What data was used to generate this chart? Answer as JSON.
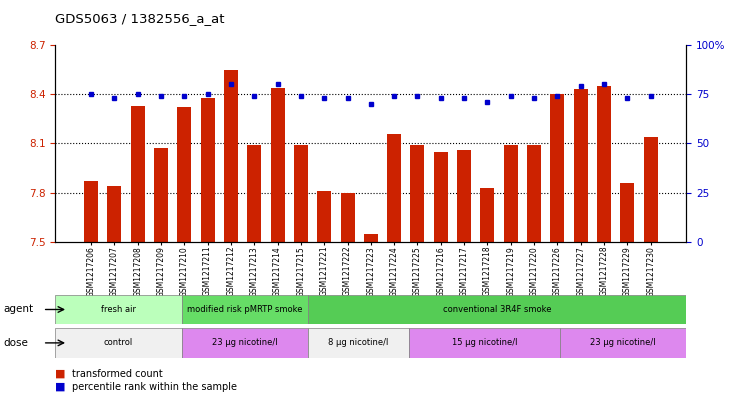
{
  "title": "GDS5063 / 1382556_a_at",
  "samples": [
    "GSM1217206",
    "GSM1217207",
    "GSM1217208",
    "GSM1217209",
    "GSM1217210",
    "GSM1217211",
    "GSM1217212",
    "GSM1217213",
    "GSM1217214",
    "GSM1217215",
    "GSM1217221",
    "GSM1217222",
    "GSM1217223",
    "GSM1217224",
    "GSM1217225",
    "GSM1217216",
    "GSM1217217",
    "GSM1217218",
    "GSM1217219",
    "GSM1217220",
    "GSM1217226",
    "GSM1217227",
    "GSM1217228",
    "GSM1217229",
    "GSM1217230"
  ],
  "bar_values": [
    7.87,
    7.84,
    8.33,
    8.07,
    8.32,
    8.38,
    8.55,
    8.09,
    8.44,
    8.09,
    7.81,
    7.8,
    7.55,
    8.16,
    8.09,
    8.05,
    8.06,
    7.83,
    8.09,
    8.09,
    8.4,
    8.43,
    8.45,
    7.86,
    8.14
  ],
  "percentile_values": [
    75,
    73,
    75,
    74,
    74,
    75,
    80,
    74,
    80,
    74,
    73,
    73,
    70,
    74,
    74,
    73,
    73,
    71,
    74,
    73,
    74,
    79,
    80,
    73,
    74
  ],
  "bar_color": "#cc2200",
  "percentile_color": "#0000cc",
  "ylim_left": [
    7.5,
    8.7
  ],
  "ylim_right": [
    0,
    100
  ],
  "yticks_left": [
    7.5,
    7.8,
    8.1,
    8.4,
    8.7
  ],
  "yticks_right": [
    0,
    25,
    50,
    75,
    100
  ],
  "grid_values": [
    7.8,
    8.1,
    8.4
  ],
  "agent_groups": [
    {
      "label": "fresh air",
      "start": 0,
      "end": 5,
      "color": "#bbffbb"
    },
    {
      "label": "modified risk pMRTP smoke",
      "start": 5,
      "end": 10,
      "color": "#66dd66"
    },
    {
      "label": "conventional 3R4F smoke",
      "start": 10,
      "end": 25,
      "color": "#55cc55"
    }
  ],
  "dose_groups": [
    {
      "label": "control",
      "start": 0,
      "end": 5,
      "color": "#f0f0f0"
    },
    {
      "label": "23 μg nicotine/l",
      "start": 5,
      "end": 10,
      "color": "#dd88ee"
    },
    {
      "label": "8 μg nicotine/l",
      "start": 10,
      "end": 14,
      "color": "#f0f0f0"
    },
    {
      "label": "15 μg nicotine/l",
      "start": 14,
      "end": 20,
      "color": "#dd88ee"
    },
    {
      "label": "23 μg nicotine/l",
      "start": 20,
      "end": 25,
      "color": "#dd88ee"
    }
  ],
  "legend_bar_label": "transformed count",
  "legend_pct_label": "percentile rank within the sample",
  "agent_label": "agent",
  "dose_label": "dose"
}
